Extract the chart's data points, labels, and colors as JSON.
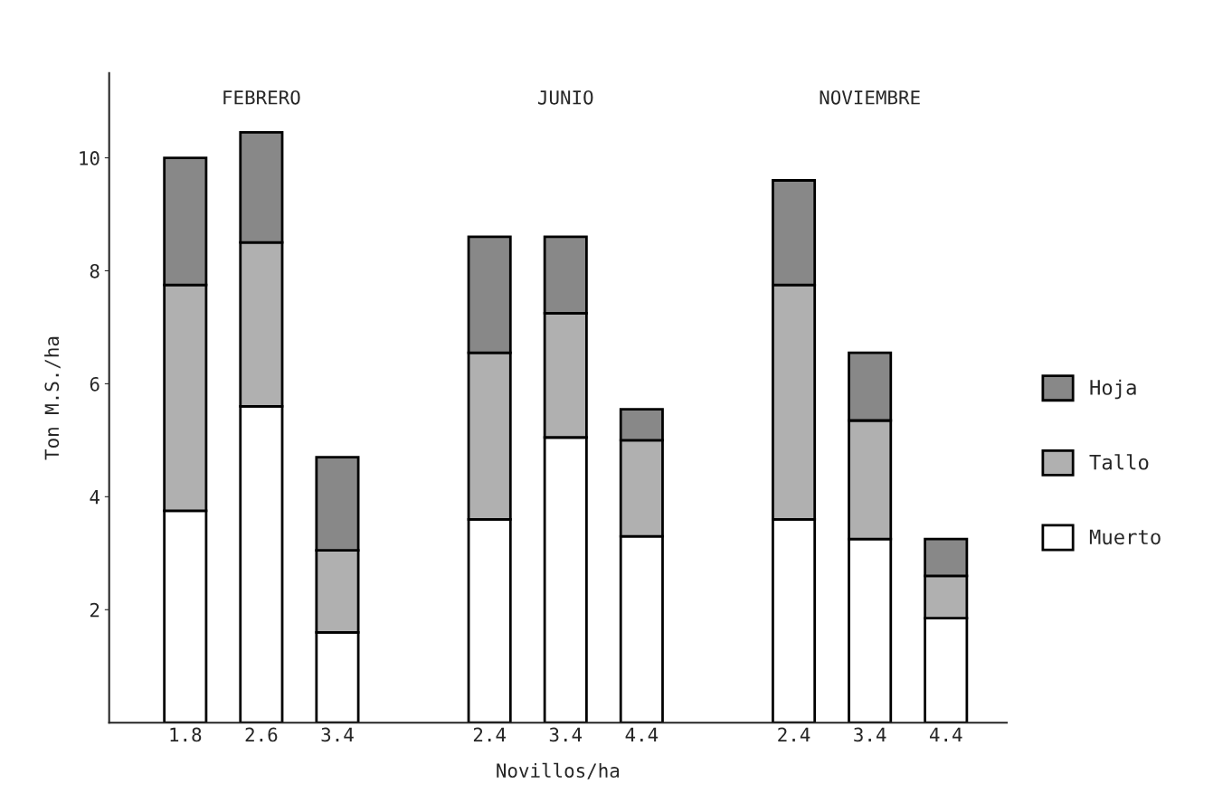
{
  "chart_data": {
    "type": "bar",
    "stacked": true,
    "xlabel": "Novillos/ha",
    "ylabel": "Ton M.S./ha",
    "categories": [
      "1.8",
      "2.6",
      "3.4",
      null,
      "2.4",
      "3.4",
      "4.4",
      null,
      "2.4",
      "3.4",
      "4.4"
    ],
    "series": [
      {
        "name": "Muerto",
        "color": "#ffffff",
        "values": [
          3.75,
          5.6,
          1.6,
          null,
          3.6,
          5.05,
          3.3,
          null,
          3.6,
          3.25,
          1.85
        ]
      },
      {
        "name": "Tallo",
        "color": "#b0b0b0",
        "values": [
          4.0,
          2.9,
          1.45,
          null,
          2.95,
          2.2,
          1.7,
          null,
          4.15,
          2.1,
          0.75
        ]
      },
      {
        "name": "Hoja",
        "color": "#888888",
        "values": [
          2.25,
          1.95,
          1.65,
          null,
          2.05,
          1.35,
          0.55,
          null,
          1.85,
          1.2,
          0.65
        ]
      }
    ],
    "annotations": [
      "FEBRERO",
      "JUNIO",
      "NOVIEMBRE"
    ],
    "ylim": [
      0,
      11.5
    ],
    "yticks": [
      2,
      4,
      6,
      8,
      10
    ],
    "legend": "right",
    "grid": false
  }
}
